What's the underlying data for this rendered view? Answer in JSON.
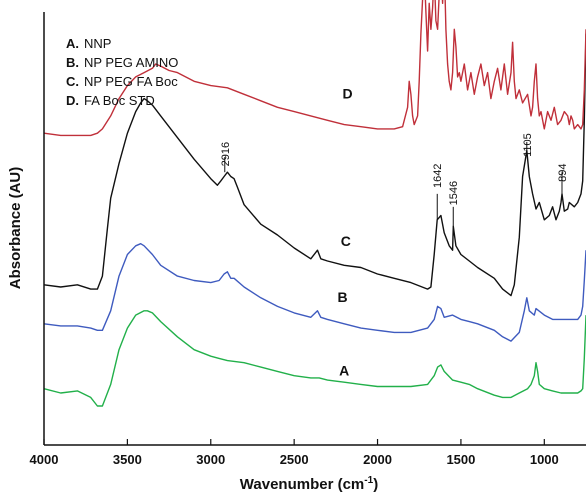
{
  "chart_data": {
    "type": "line",
    "title": "",
    "xlabel": "Wavenumber (cm",
    "xlabel_sup": "-1",
    "xlabel_close": ")",
    "ylabel": "Absorbance (AU)",
    "xlim": [
      4000,
      750
    ],
    "x_reversed": true,
    "ylim": [
      0,
      100
    ],
    "y_ticks_shown": false,
    "grid": false,
    "legend_position": "top-left",
    "x_ticks": [
      {
        "value": 4000,
        "label": "4000"
      },
      {
        "value": 3500,
        "label": "3500"
      },
      {
        "value": 3000,
        "label": "3000"
      },
      {
        "value": 2500,
        "label": "2500"
      },
      {
        "value": 2000,
        "label": "2000"
      },
      {
        "value": 1500,
        "label": "1500"
      },
      {
        "value": 1000,
        "label": "1000"
      }
    ],
    "legend": [
      {
        "key": "A.",
        "text": "NNP"
      },
      {
        "key": "B.",
        "text": "NP PEG AMINO"
      },
      {
        "key": "C.",
        "text": "NP PEG FA Boc"
      },
      {
        "key": "D.",
        "text": "FA Boc STD"
      }
    ],
    "series": [
      {
        "name": "A",
        "color": "#22b04a",
        "label_at": [
          2200,
          16
        ],
        "x": [
          4000,
          3900,
          3800,
          3720,
          3680,
          3650,
          3600,
          3550,
          3500,
          3450,
          3400,
          3380,
          3350,
          3300,
          3200,
          3100,
          3000,
          2950,
          2900,
          2800,
          2700,
          2600,
          2500,
          2400,
          2350,
          2300,
          2200,
          2100,
          2000,
          1900,
          1800,
          1700,
          1660,
          1640,
          1620,
          1600,
          1550,
          1500,
          1450,
          1400,
          1300,
          1250,
          1200,
          1150,
          1100,
          1080,
          1060,
          1050,
          1040,
          1030,
          1000,
          950,
          900,
          850,
          800,
          780,
          770,
          760,
          750
        ],
        "y": [
          13,
          12,
          12.5,
          11,
          9,
          9,
          14,
          22,
          27,
          30,
          31,
          31,
          30.5,
          28.5,
          25,
          22,
          20.5,
          20,
          19.5,
          19,
          18,
          17,
          16,
          15.5,
          15.5,
          15,
          14.5,
          14,
          13.5,
          13.5,
          13.5,
          14,
          16,
          18,
          18.5,
          17,
          15,
          14.5,
          14,
          13,
          11.5,
          11,
          11,
          12,
          13,
          14,
          16,
          19,
          17,
          14,
          13,
          12.5,
          12,
          12,
          12,
          12.5,
          13,
          20,
          30
        ]
      },
      {
        "name": "B",
        "color": "#3f5bbf",
        "label_at": [
          2210,
          33
        ],
        "x": [
          4000,
          3900,
          3800,
          3720,
          3680,
          3650,
          3600,
          3550,
          3500,
          3450,
          3420,
          3400,
          3350,
          3300,
          3200,
          3100,
          3000,
          2950,
          2920,
          2900,
          2880,
          2860,
          2800,
          2700,
          2600,
          2500,
          2400,
          2360,
          2340,
          2300,
          2200,
          2100,
          2000,
          1900,
          1800,
          1700,
          1660,
          1640,
          1620,
          1600,
          1550,
          1500,
          1450,
          1400,
          1300,
          1250,
          1200,
          1150,
          1120,
          1105,
          1090,
          1060,
          1050,
          1000,
          950,
          900,
          850,
          800,
          780,
          770,
          760,
          750
        ],
        "y": [
          28,
          27.5,
          27.5,
          27,
          26.5,
          26.5,
          31,
          39,
          44,
          46,
          46.5,
          46,
          44,
          41.5,
          39,
          38,
          37.5,
          38,
          39.5,
          40,
          38.5,
          38.5,
          36.5,
          34,
          32,
          30.5,
          29.5,
          31,
          29.5,
          29,
          28,
          27,
          26.5,
          26,
          26,
          27,
          29,
          32,
          31.5,
          29.5,
          30,
          29,
          28.5,
          28,
          26.5,
          25,
          24,
          26,
          31,
          34,
          31,
          30,
          31.5,
          30,
          29,
          29,
          29,
          29,
          30,
          32,
          38,
          45
        ]
      },
      {
        "name": "C",
        "color": "#111111",
        "label_at": [
          2190,
          46
        ],
        "x": [
          4000,
          3900,
          3800,
          3720,
          3680,
          3650,
          3620,
          3600,
          3550,
          3500,
          3450,
          3420,
          3400,
          3380,
          3350,
          3300,
          3200,
          3100,
          3000,
          2960,
          2940,
          2920,
          2900,
          2880,
          2860,
          2840,
          2800,
          2700,
          2600,
          2500,
          2400,
          2360,
          2340,
          2300,
          2200,
          2100,
          2000,
          1900,
          1800,
          1700,
          1680,
          1660,
          1642,
          1620,
          1600,
          1570,
          1550,
          1546,
          1530,
          1500,
          1450,
          1400,
          1300,
          1250,
          1200,
          1180,
          1150,
          1130,
          1105,
          1090,
          1070,
          1050,
          1030,
          1000,
          970,
          950,
          930,
          910,
          900,
          894,
          880,
          860,
          850,
          820,
          800,
          780,
          770,
          760,
          750
        ],
        "y": [
          37,
          36.5,
          37,
          36,
          36,
          39,
          50,
          57,
          65,
          72,
          77,
          79,
          80,
          79.5,
          78.5,
          76,
          71,
          66,
          61.5,
          60,
          61,
          62,
          63,
          62,
          61.5,
          59.5,
          55.5,
          51,
          48.5,
          45.5,
          43,
          45,
          43,
          42.5,
          41.5,
          41,
          39.5,
          38.5,
          37.5,
          36,
          36.5,
          44,
          52,
          53,
          49,
          46,
          45,
          50.5,
          46,
          44,
          42.5,
          41,
          38.5,
          36,
          34.5,
          37,
          48,
          62,
          68,
          62,
          58,
          54.5,
          56,
          52,
          53,
          55,
          52,
          54,
          56,
          58,
          54,
          54.5,
          56,
          55,
          56,
          58,
          61,
          75,
          95
        ]
      },
      {
        "name": "D",
        "color": "#c0303a",
        "label_at": [
          2180,
          80
        ],
        "x": [
          4000,
          3900,
          3800,
          3720,
          3680,
          3650,
          3600,
          3550,
          3500,
          3450,
          3400,
          3350,
          3330,
          3300,
          3250,
          3200,
          3100,
          3000,
          2900,
          2800,
          2700,
          2600,
          2500,
          2400,
          2300,
          2200,
          2100,
          2000,
          1900,
          1850,
          1820,
          1810,
          1800,
          1790,
          1780,
          1760,
          1750,
          1740,
          1730,
          1720,
          1710,
          1700,
          1690,
          1680,
          1670,
          1660,
          1650,
          1640,
          1630,
          1620,
          1610,
          1600,
          1590,
          1580,
          1570,
          1560,
          1550,
          1540,
          1530,
          1520,
          1510,
          1500,
          1480,
          1460,
          1440,
          1420,
          1400,
          1380,
          1360,
          1340,
          1320,
          1300,
          1280,
          1260,
          1240,
          1220,
          1200,
          1190,
          1180,
          1170,
          1150,
          1130,
          1100,
          1080,
          1070,
          1060,
          1050,
          1040,
          1030,
          1020,
          1000,
          980,
          960,
          940,
          920,
          900,
          880,
          860,
          850,
          840,
          830,
          820,
          800,
          780,
          770,
          760,
          750
        ],
        "y": [
          72,
          71.5,
          71.5,
          71.5,
          72,
          73,
          76,
          80,
          83,
          85,
          86,
          87,
          88,
          87.5,
          86.5,
          86,
          84,
          83,
          82.5,
          81,
          79.5,
          78,
          77,
          76,
          75,
          74,
          73.5,
          73,
          73,
          73.5,
          78,
          84,
          81,
          76,
          74,
          76,
          84,
          95,
          103,
          110,
          100,
          91,
          102,
          96,
          101,
          109,
          98,
          96,
          104,
          110,
          102,
          112,
          96,
          88,
          84,
          82,
          86,
          96,
          92,
          85,
          86,
          84,
          88,
          82,
          86,
          81,
          85,
          88,
          83,
          86,
          80,
          84,
          87,
          82,
          88,
          81,
          86,
          93,
          84,
          80,
          82,
          79,
          81,
          76,
          78,
          84,
          88,
          80,
          76,
          77,
          73,
          77,
          75,
          78,
          74,
          75,
          77,
          76,
          74,
          76,
          75,
          73,
          74,
          73,
          74,
          82,
          96
        ]
      }
    ],
    "annotations": [
      {
        "text": "2916",
        "x": 2916,
        "y_text": 70,
        "y_line_top": 66.5,
        "y_line_bottom": 63
      },
      {
        "text": "1642",
        "x": 1642,
        "y_text": 65,
        "y_line_top": 58,
        "y_line_bottom": 52
      },
      {
        "text": "1546",
        "x": 1546,
        "y_text": 61,
        "y_line_top": 55,
        "y_line_bottom": 50.5
      },
      {
        "text": "1105",
        "x": 1105,
        "y_text": 72,
        "y_line_top": 70,
        "y_line_bottom": 68
      },
      {
        "text": "894",
        "x": 894,
        "y_text": 65,
        "y_line_top": 63,
        "y_line_bottom": 58
      }
    ]
  }
}
